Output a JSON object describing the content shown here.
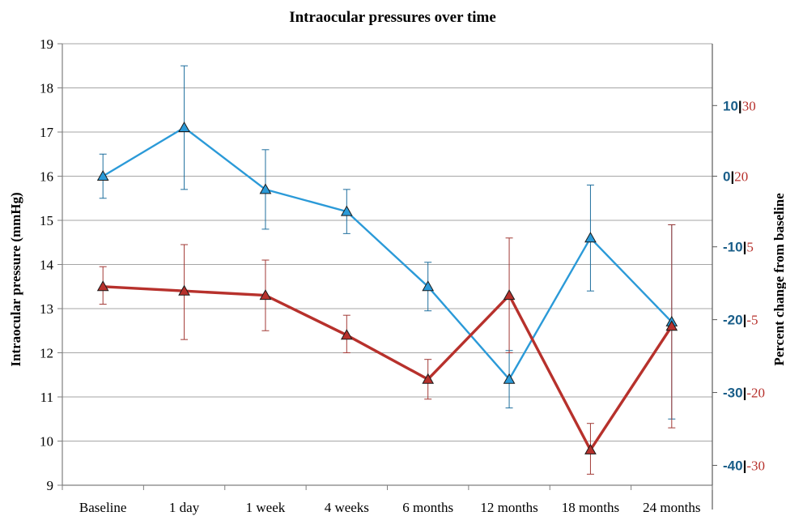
{
  "chart_data": {
    "type": "line",
    "title": "Intraocular pressures over time",
    "ylabel": "Intraocular pressure (mmHg)",
    "y2label": "Percent change from baseline",
    "categories": [
      "Baseline",
      "1 day",
      "1 week",
      "4 weeks",
      "6 months",
      "12 months",
      "18 months",
      "24 months"
    ],
    "ylim": [
      9,
      19
    ],
    "yticks": [
      9,
      10,
      11,
      12,
      13,
      14,
      15,
      16,
      17,
      18,
      19
    ],
    "right_ticks": [
      {
        "y": 17.6,
        "a": "10",
        "b": "30"
      },
      {
        "y": 16.0,
        "a": "0",
        "b": "20"
      },
      {
        "y": 14.4,
        "a": "-10",
        "b": "5"
      },
      {
        "y": 12.75,
        "a": "-20",
        "b": "-5"
      },
      {
        "y": 11.1,
        "a": "-30",
        "b": "-20"
      },
      {
        "y": 9.45,
        "a": "-40",
        "b": "-30"
      }
    ],
    "grid": true,
    "colors": {
      "blue": "#2b9ad8",
      "red": "#b7312c",
      "blue_tick": "#1a5e89",
      "red_tick": "#b7312c"
    },
    "series": [
      {
        "color": "#2b9ad8",
        "values": [
          16.0,
          17.1,
          15.7,
          15.2,
          13.5,
          11.4,
          14.6,
          12.7
        ],
        "err_low": [
          15.5,
          15.7,
          14.8,
          14.7,
          12.95,
          10.75,
          13.4,
          10.5
        ],
        "err_high": [
          16.5,
          18.5,
          16.6,
          15.7,
          14.05,
          12.05,
          15.8,
          14.9
        ]
      },
      {
        "color": "#b7312c",
        "values": [
          13.5,
          13.4,
          13.3,
          12.4,
          11.4,
          13.3,
          9.8,
          12.6
        ],
        "err_low": [
          13.1,
          12.3,
          12.5,
          12.0,
          10.95,
          12.0,
          9.25,
          10.3
        ],
        "err_high": [
          13.95,
          14.45,
          14.1,
          12.85,
          11.85,
          14.6,
          10.4,
          14.9
        ]
      }
    ]
  }
}
